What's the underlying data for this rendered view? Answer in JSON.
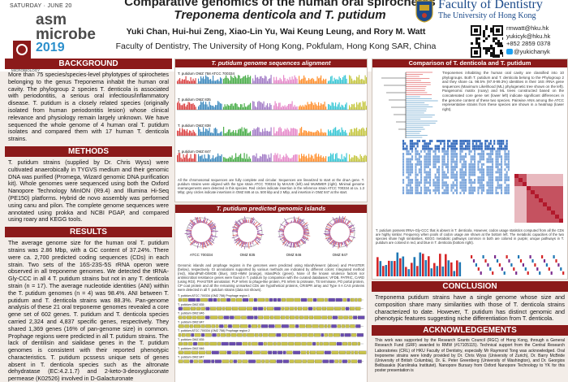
{
  "header": {
    "asm_date": "SATURDAY · JUNE 20",
    "asm_name_1": "asm",
    "asm_name_2": "microbe",
    "asm_year": "2019",
    "asm_society": "AMERICAN SOCIETY FOR MICROBIOLOGY",
    "title_line_1": "Comparative genomics of the human oral spirochetes",
    "title_line_2": "Treponema denticola and T. putidum",
    "authors": "Yuki Chan, Hui-hui Zeng, Xiao-Lin Yu, Wai Keung Leung, and Rory M. Watt",
    "affiliation": "Faculty of Dentistry, The University of Hong Kong, Pokfulam, Hong Kong SAR, China",
    "faculty": "Faculty of Dentistry",
    "university": "The University of Hong Kong",
    "contact": [
      "rmwatt@hku.hk",
      "yukicyk@hku.hk",
      "+852 2859 0378",
      "@yukichanyk"
    ]
  },
  "background": {
    "heading": "BACKGROUND",
    "text": "More than 75 species/species-level phylotypes of spirochetes belonging to the genus Treponema inhabit the human oral cavity. The phylogroup 2 species T. denticola is associated with periodontitis, a serious oral infectious/inflammatory disease. T. putidum is a closely related species (originally isolated from human periodontitis lesion) whose clinical relevance and physiology remain largely unknown. We have sequenced the whole genome of 4 human oral T. putidum isolates and compared them with 17 human T. denticola strains."
  },
  "methods": {
    "heading": "METHODS",
    "text": "T. putidum strains (supplied by Dr. Chris Wyss) were cultivated anaerobically in TYGVS medium and their genomic DNA was purified (Promega, Wizard genomic DNA purification kit). Whole genomes were sequenced using both the Oxford Nanopore Technology MinION (R9.4) and Illumina Hi-Seq (PE150) platforms. Hybrid de novo assembly was performed using canu and pilon. The complete genome sequences were annotated using prokka and NCBI PGAP, and compared using roary and KEGG tools."
  },
  "results": {
    "heading": "RESULTS",
    "text": "The average genome size for the human oral T. putidum strains was 2.86 Mbp, with a GC content of 37.24%. There were ca. 2,700 predicted coding sequences (CDs) in each strain. Two sets of the 16S-23S-5S rRNA operon were observed in all treponeme genomes. We detected the tRNA-Gly-CCC in all 4 T. putidum strains but not in any T. denticola strain (n = 17). The average nucleotide identities (ANI) within the T. putidum genomes (n = 4) was 98.4%. ANI between T. putidum and T. denticola strains was 88.3%. Pan-genome analysis of these 21 oral treponeme genomes revealed a core gene set of 602 genes. T. putidum and T. denticola species carried 2,324 and 4,837 specific genes, respectively. They shared 1,369 genes (16% of pan-genome size) in common. Prophage regions were predicted in all T. putidum strains. The lack of dentilisin and sialidase genes in the T. putidum genomes is consistent with their reported phenotypic characteristics. T. putidum pcssess unique sets of genes absent in T. denticola species such as the altronate dehydratase (EC:4.2.1.7) and 2-keto-3-deoxygluconate permease (K02526) involved in D-Galacturonate"
  },
  "alignment": {
    "heading": "T. putidum genome sequences alignment",
    "tracks": [
      "T. putidum OMZ 758 ATCC 700334",
      "T. putidum OMZ 835",
      "T. putidum OMZ 838",
      "T. putidum OMZ 847"
    ],
    "caption": "All the chromosomal sequences are fully complete and circular. Sequences are linearized to start at the dnaA gene. T. putidum strains were aligned with the type strain ATCC 700334 by MAUVE (left) and MUMMER (right). Minimal genome rearrangements were detected in this species. Red circles indicate insertion in the reference strain ATCC 700334 at ca. 1.3 Mbp; grey circles indicate insertions in OMZ 846 at ca. 500 kbp and 2 Mbp, and insertion in OMZ 847 at the start."
  },
  "islands": {
    "heading": "T. putidum predicted genomic islands",
    "circle_labels": [
      "ATCC 700334",
      "OMZ 835",
      "OMZ 846",
      "OMZ 847"
    ],
    "caption": "Genomic islands and prophage regions in the genomes were predicted using IslandViewer4 (above) and PHASTER (below), respectively. GI annotations supported by various methods are indicated by different colors: Integrated method (red), IslandPath-DIMOB (blue), SIGI-HMM (orange), IslandPick (green). None of the known virulence factors nor antimicrobial resistance genes were found in T. putidum by comparison with the curated databases: VFDB, PATRIC, CARD (using RGI). PHASTER annotation: PLP refers to phage-like protein, PS refers to protease, TS terminase, PO portal protein, CP coat protein and all the remaining unmarked CDs are hypothetical proteins, CRISPR array and Type II A CAS proteins were detected in all T. putidum strains (data not shown).",
    "phage_tracks": [
      "T. putidum ATCC 700334 (OMZ 758) Prophage region 1",
      "T. putidum OMZ 835",
      "T. putidum OMZ 846",
      "T. putidum OMZ 847",
      "T. putidum ATCC 700334 (OMZ 758) Prophage region 2",
      "T. putidum OMZ 835",
      "T. putidum OMZ 846",
      "T. putidum OMZ 847"
    ]
  },
  "comparison": {
    "heading": "Comparison of T. denticola and T. putidum",
    "tree_text": "Treponemes inhabiting the human oral cavity are classified into 10 phylogroups. Both T. putidum and T. denticola belong to the Phylogroup 2 and they share ca. 98.5% (97.8-99.3%) identities in their 16S rRNA gene sequences (Maximum Likelihood (ML) phylogenetic tree shown on the left). Pangenomic matrix (roary) and ML trees constructed based on the concatenated core gene set (lower left) indicate significant differences in the genome content of these two species. Pairwise ANIs among the ATCC representative strains from these species are shown in a heatmap (lower right).",
    "heatmap_caption": "T. putidum possess tRNA-Gly-CCC that is absent in T. denticola. However, codon usage statistics computed from all the CDs are highly similar. Frequency when pools of codon usage are shown at the bottom left. The metabolic capacities of the two species share high similarities. KEGG metabolic pathways common in both are colored in purple; unique pathways in T. putidum are colored in red, and blue in T. denticola (bottom right)."
  },
  "conclusion": {
    "heading": "CONCLUSION",
    "text": "Treponema putidum strains have a single genome whose size and composition share many similarities with those of T. denticola strains characterized to date. However, T. putidum has distinct genomic and phenotypic features suggesting niche differentiation from T. denticola."
  },
  "acknowledgements": {
    "heading": "ACKNOWLEDGEMENTS",
    "text": "This work was supported by the Research Grants Council (RGC) of Hong Kong, through a General Research Fund (GRF) awarded to RMW (#17105115). Technical support from the Central Research Laboratories (CRL) of HKU Faculty of Dentistry, especially Mr Raymond Tong was acknowledged. Oral treponeme strains were kindly provided by Dr. Chris Wyss (University of Zurich), Dr. Barry McBride (University of British Columbia), Dr. E. Peter Greenberg (University of Washington), and Dr. Georgios Belibasakis (Karolinska Institutet). Nanopore Bursary from Oxford Nanopore Technology to YK for this poster presentation is"
  },
  "colors": {
    "accent": "#8b1a1a",
    "background": "#f3ede8",
    "university_blue": "#1b4a8a"
  }
}
